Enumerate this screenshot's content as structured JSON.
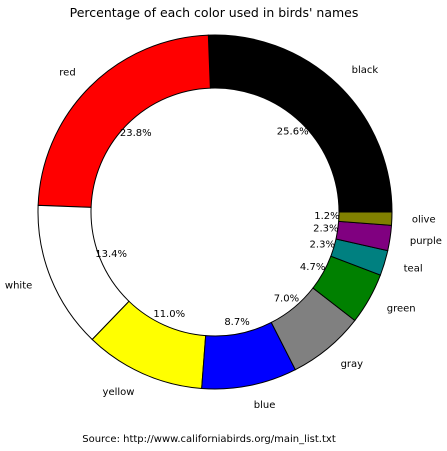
{
  "chart_data": {
    "type": "pie",
    "style": "donut",
    "title": "Percentage of each color used in birds' names",
    "source": "Source: http://www.californiabirds.org/main_list.txt",
    "start_angle_deg": 0,
    "direction": "counterclockwise",
    "slices": [
      {
        "label": "black",
        "pct_label": "25.6%",
        "value": 25.6,
        "color": "#000000"
      },
      {
        "label": "red",
        "pct_label": "23.8%",
        "value": 23.8,
        "color": "#ff0000"
      },
      {
        "label": "white",
        "pct_label": "13.4%",
        "value": 13.4,
        "color": "#ffffff"
      },
      {
        "label": "yellow",
        "pct_label": "11.0%",
        "value": 11.0,
        "color": "#ffff00"
      },
      {
        "label": "blue",
        "pct_label": "8.7%",
        "value": 8.7,
        "color": "#0000ff"
      },
      {
        "label": "gray",
        "pct_label": "7.0%",
        "value": 7.0,
        "color": "#808080"
      },
      {
        "label": "green",
        "pct_label": "4.7%",
        "value": 4.7,
        "color": "#008000"
      },
      {
        "label": "teal",
        "pct_label": "2.3%",
        "value": 2.3,
        "color": "#008080"
      },
      {
        "label": "purple",
        "pct_label": "2.3%",
        "value": 2.3,
        "color": "#800080"
      },
      {
        "label": "olive",
        "pct_label": "1.2%",
        "value": 1.2,
        "color": "#808000"
      }
    ]
  }
}
